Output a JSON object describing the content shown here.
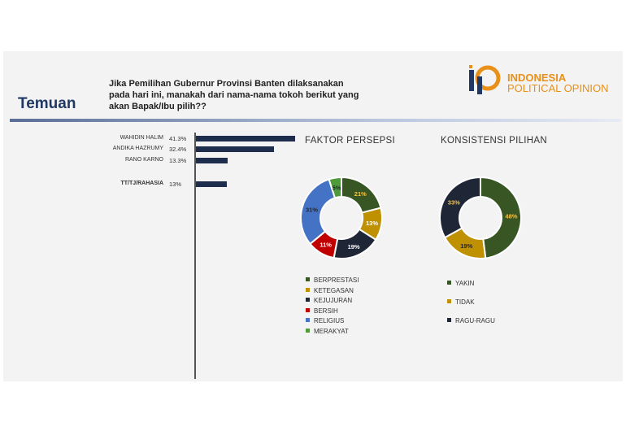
{
  "header": {
    "title": "Temuan",
    "question": "Jika Pemilihan Gubernur Provinsi Banten dilaksanakan pada hari ini, manakah dari nama-nama tokoh berikut yang akan Bapak/Ibu pilih??",
    "logo_line1": "INDONESIA",
    "logo_line2": "POLITICAL OPINION",
    "logo_colors": {
      "navy": "#1f3864",
      "orange": "#e8901a"
    }
  },
  "chart_data": [
    {
      "type": "bar",
      "orientation": "horizontal",
      "categories": [
        "WAHIDIN HALIM",
        "ANDIKA HAZRUMY",
        "RANO KARNO",
        "TT/TJ/RAHASIA"
      ],
      "values": [
        41.3,
        32.4,
        13.3,
        13
      ],
      "value_labels": [
        "41.3%",
        "32.4%",
        "13.3%",
        "13%"
      ],
      "bar_color": "#1f2d4d"
    },
    {
      "type": "pie",
      "donut": true,
      "title": "FAKTOR PERSEPSI",
      "categories": [
        "BERPRESTASI",
        "KETEGASAN",
        "KEJUJURAN",
        "BERSIH",
        "RELIGIUS",
        "MERAKYAT"
      ],
      "values": [
        21,
        13,
        19,
        11,
        31,
        5
      ],
      "value_labels": [
        "21%",
        "13%",
        "19%",
        "11%",
        "31%",
        "5%"
      ],
      "colors": [
        "#375623",
        "#bf9000",
        "#1f2636",
        "#c00000",
        "#4472c4",
        "#4f9a3a"
      ],
      "label_colors": [
        "#f5c242",
        "#ffffff",
        "#ffffff",
        "#ffffff",
        "#1f2636",
        "#1f2636"
      ],
      "legend_position": "bottom"
    },
    {
      "type": "pie",
      "donut": true,
      "title": "KONSISTENSI PILIHAN",
      "categories": [
        "YAKIN",
        "TIDAK",
        "RAGU-RAGU"
      ],
      "values": [
        48,
        19,
        33
      ],
      "value_labels": [
        "48%",
        "19%",
        "33%"
      ],
      "colors": [
        "#375623",
        "#bf9000",
        "#1f2636"
      ],
      "label_colors": [
        "#f5c242",
        "#1f2636",
        "#f5c242"
      ],
      "legend_position": "bottom"
    }
  ]
}
